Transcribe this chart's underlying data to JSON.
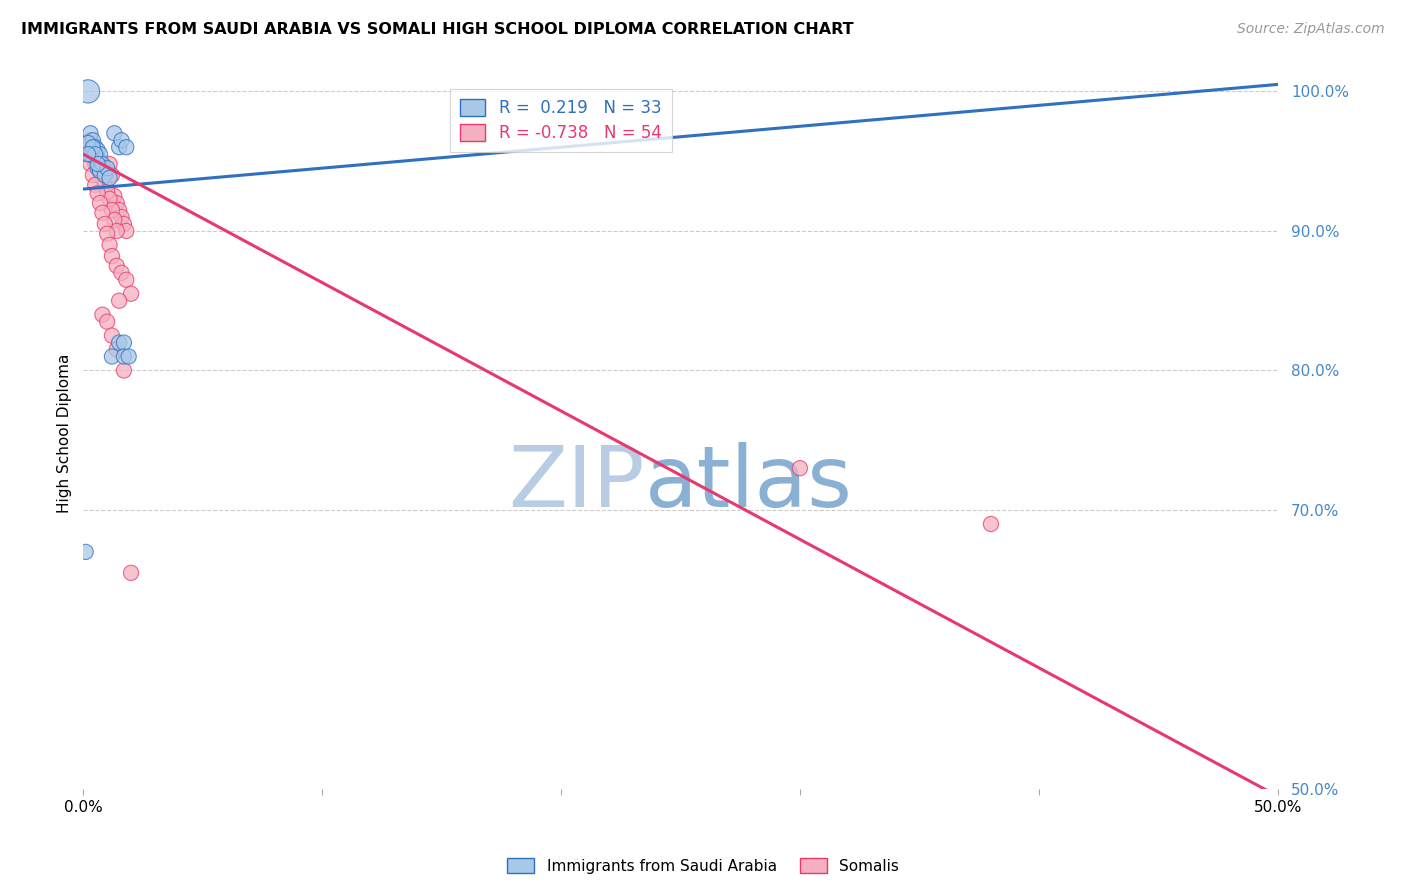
{
  "title": "IMMIGRANTS FROM SAUDI ARABIA VS SOMALI HIGH SCHOOL DIPLOMA CORRELATION CHART",
  "source": "Source: ZipAtlas.com",
  "ylabel": "High School Diploma",
  "xlim": [
    0.0,
    0.5
  ],
  "ylim": [
    0.5,
    1.01
  ],
  "ytick_right": [
    1.0,
    0.9,
    0.8,
    0.7,
    0.5
  ],
  "ytick_right_labels": [
    "100.0%",
    "90.0%",
    "80.0%",
    "70.0%",
    "50.0%"
  ],
  "legend_r_blue": "R =  0.219",
  "legend_n_blue": "N = 33",
  "legend_r_pink": "R = -0.738",
  "legend_n_pink": "N = 54",
  "blue_color": "#a8c8e8",
  "pink_color": "#f4b0c0",
  "blue_line_color": "#3070c0",
  "pink_line_color": "#e83870",
  "watermark_zip": "ZIP",
  "watermark_atlas": "atlas",
  "watermark_color": "#c8d8f0",
  "blue_line_x0": 0.0,
  "blue_line_y0": 0.93,
  "blue_line_x1": 0.5,
  "blue_line_y1": 1.005,
  "pink_line_x0": 0.0,
  "pink_line_y0": 0.955,
  "pink_line_x1": 0.5,
  "pink_line_y1": 0.495,
  "saudi_x": [
    0.001,
    0.002,
    0.003,
    0.004,
    0.005,
    0.003,
    0.004,
    0.005,
    0.006,
    0.006,
    0.006,
    0.007,
    0.007,
    0.007,
    0.008,
    0.009,
    0.01,
    0.011,
    0.012,
    0.013,
    0.015,
    0.015,
    0.016,
    0.017,
    0.017,
    0.018,
    0.019,
    0.002,
    0.003,
    0.004,
    0.005,
    0.006,
    0.002
  ],
  "saudi_y": [
    0.67,
    1.0,
    0.97,
    0.965,
    0.96,
    0.955,
    0.958,
    0.953,
    0.958,
    0.952,
    0.945,
    0.95,
    0.943,
    0.955,
    0.948,
    0.94,
    0.945,
    0.938,
    0.81,
    0.97,
    0.96,
    0.82,
    0.965,
    0.82,
    0.81,
    0.96,
    0.81,
    0.963,
    0.955,
    0.96,
    0.955,
    0.948,
    0.955
  ],
  "saudi_sizes": [
    120,
    280,
    120,
    120,
    120,
    120,
    120,
    120,
    120,
    120,
    120,
    120,
    120,
    120,
    120,
    120,
    120,
    120,
    120,
    120,
    120,
    120,
    120,
    120,
    120,
    120,
    120,
    120,
    120,
    120,
    120,
    120,
    120
  ],
  "somali_x": [
    0.001,
    0.002,
    0.003,
    0.004,
    0.005,
    0.006,
    0.007,
    0.008,
    0.009,
    0.01,
    0.011,
    0.012,
    0.013,
    0.014,
    0.015,
    0.016,
    0.017,
    0.018,
    0.003,
    0.004,
    0.005,
    0.006,
    0.007,
    0.008,
    0.009,
    0.01,
    0.011,
    0.012,
    0.013,
    0.014,
    0.002,
    0.003,
    0.004,
    0.005,
    0.006,
    0.007,
    0.008,
    0.009,
    0.01,
    0.011,
    0.012,
    0.014,
    0.016,
    0.018,
    0.02,
    0.015,
    0.008,
    0.01,
    0.012,
    0.014,
    0.017,
    0.02,
    0.3,
    0.38
  ],
  "somali_y": [
    0.955,
    0.96,
    0.958,
    0.953,
    0.948,
    0.945,
    0.942,
    0.938,
    0.94,
    0.942,
    0.948,
    0.94,
    0.925,
    0.92,
    0.915,
    0.91,
    0.905,
    0.9,
    0.965,
    0.96,
    0.956,
    0.95,
    0.945,
    0.938,
    0.932,
    0.928,
    0.923,
    0.915,
    0.908,
    0.9,
    0.96,
    0.948,
    0.94,
    0.933,
    0.927,
    0.92,
    0.913,
    0.905,
    0.898,
    0.89,
    0.882,
    0.875,
    0.87,
    0.865,
    0.855,
    0.85,
    0.84,
    0.835,
    0.825,
    0.815,
    0.8,
    0.655,
    0.73,
    0.69
  ],
  "somali_sizes": [
    120,
    120,
    120,
    120,
    120,
    120,
    120,
    120,
    120,
    120,
    120,
    120,
    120,
    120,
    120,
    120,
    120,
    120,
    120,
    120,
    120,
    120,
    120,
    120,
    120,
    120,
    120,
    120,
    120,
    120,
    120,
    120,
    120,
    120,
    120,
    120,
    120,
    120,
    120,
    120,
    120,
    120,
    120,
    120,
    120,
    120,
    120,
    120,
    120,
    120,
    120,
    120,
    120,
    120
  ]
}
